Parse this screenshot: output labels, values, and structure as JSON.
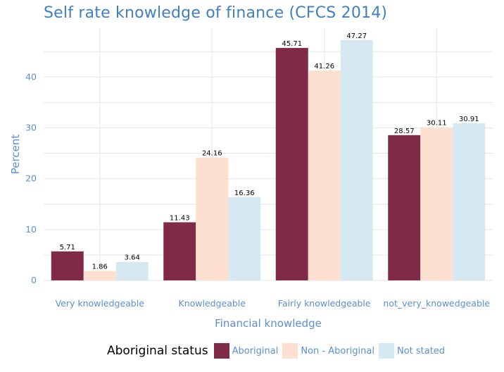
{
  "chart_data": {
    "type": "bar",
    "title": "Self rate knowledge of finance (CFCS 2014)",
    "xlabel": "Financial knowledge",
    "ylabel": "Percent",
    "categories": [
      "Very knowledgeable",
      "Knowledgeable",
      "Fairly knowledgeable",
      "not_very_knowedgeable"
    ],
    "series": [
      {
        "name": "Aboriginal",
        "values": [
          5.71,
          11.43,
          45.71,
          28.57
        ],
        "color": "#7f2a47"
      },
      {
        "name": "Non - Aboriginal",
        "values": [
          1.86,
          24.16,
          41.26,
          30.11
        ],
        "color": "#fde0cf"
      },
      {
        "name": "Not stated",
        "values": [
          3.64,
          16.36,
          47.27,
          30.91
        ],
        "color": "#d6e8f2"
      }
    ],
    "yticks": [
      0,
      10,
      20,
      30,
      40
    ],
    "ylim": [
      0,
      49.6
    ],
    "grid": true,
    "legend": {
      "title": "Aboriginal status",
      "placement": "bottom"
    }
  }
}
